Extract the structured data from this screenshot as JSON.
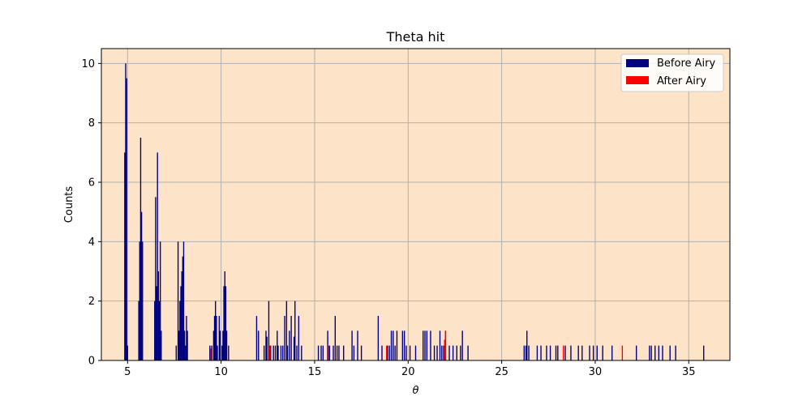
{
  "chart_data": {
    "type": "bar",
    "title": "Theta hit",
    "xlabel": "θ",
    "ylabel": "Counts",
    "xlim": [
      3.6,
      37.2
    ],
    "ylim": [
      0,
      10.5
    ],
    "xticks": [
      5,
      10,
      15,
      20,
      25,
      30,
      35
    ],
    "yticks": [
      0,
      2,
      4,
      6,
      8,
      10
    ],
    "grid": true,
    "background": "#fde4c8",
    "legend_position": "top-right",
    "bin_width": 0.06,
    "series": [
      {
        "name": "Before Airy",
        "color": "#000080",
        "points": [
          [
            4.85,
            7
          ],
          [
            4.9,
            10
          ],
          [
            4.95,
            9.5
          ],
          [
            5.0,
            0.5
          ],
          [
            5.6,
            2
          ],
          [
            5.65,
            4
          ],
          [
            5.7,
            7.5
          ],
          [
            5.75,
            5
          ],
          [
            5.8,
            4
          ],
          [
            6.45,
            2
          ],
          [
            6.5,
            5.5
          ],
          [
            6.55,
            2.5
          ],
          [
            6.6,
            7
          ],
          [
            6.65,
            3
          ],
          [
            6.7,
            2
          ],
          [
            6.75,
            4
          ],
          [
            6.8,
            1
          ],
          [
            7.6,
            0.5
          ],
          [
            7.7,
            4
          ],
          [
            7.75,
            1
          ],
          [
            7.8,
            2
          ],
          [
            7.85,
            2.5
          ],
          [
            7.9,
            3
          ],
          [
            7.95,
            3.5
          ],
          [
            8.0,
            4
          ],
          [
            8.05,
            1
          ],
          [
            8.1,
            0.5
          ],
          [
            8.15,
            1.5
          ],
          [
            8.2,
            1
          ],
          [
            9.4,
            0.5
          ],
          [
            9.5,
            0.5
          ],
          [
            9.6,
            1
          ],
          [
            9.65,
            1.5
          ],
          [
            9.7,
            2
          ],
          [
            9.75,
            1.5
          ],
          [
            9.8,
            0.5
          ],
          [
            9.9,
            1.5
          ],
          [
            9.95,
            1
          ],
          [
            10.05,
            0.5
          ],
          [
            10.1,
            1
          ],
          [
            10.15,
            2.5
          ],
          [
            10.2,
            3
          ],
          [
            10.25,
            2.5
          ],
          [
            10.3,
            1
          ],
          [
            10.4,
            0.5
          ],
          [
            11.9,
            1.5
          ],
          [
            12.0,
            1
          ],
          [
            12.3,
            0.5
          ],
          [
            12.4,
            1
          ],
          [
            12.45,
            0.8
          ],
          [
            12.55,
            2
          ],
          [
            12.65,
            0.5
          ],
          [
            12.8,
            0.5
          ],
          [
            12.9,
            0.5
          ],
          [
            13.0,
            1
          ],
          [
            13.05,
            0.5
          ],
          [
            13.2,
            0.5
          ],
          [
            13.3,
            0.5
          ],
          [
            13.4,
            1.5
          ],
          [
            13.5,
            2
          ],
          [
            13.55,
            0.5
          ],
          [
            13.65,
            1
          ],
          [
            13.75,
            1.5
          ],
          [
            13.9,
            0.8
          ],
          [
            13.95,
            2
          ],
          [
            14.05,
            0.5
          ],
          [
            14.15,
            1.5
          ],
          [
            14.3,
            0.5
          ],
          [
            15.2,
            0.5
          ],
          [
            15.35,
            0.5
          ],
          [
            15.45,
            0.5
          ],
          [
            15.7,
            1
          ],
          [
            15.8,
            0.5
          ],
          [
            16.0,
            0.5
          ],
          [
            16.1,
            1.5
          ],
          [
            16.2,
            0.5
          ],
          [
            16.3,
            0.5
          ],
          [
            16.55,
            0.5
          ],
          [
            17.0,
            1
          ],
          [
            17.1,
            0.5
          ],
          [
            17.3,
            1
          ],
          [
            17.5,
            0.5
          ],
          [
            18.4,
            1.5
          ],
          [
            18.6,
            0.5
          ],
          [
            18.9,
            0.5
          ],
          [
            19.0,
            0.5
          ],
          [
            19.1,
            1
          ],
          [
            19.2,
            1
          ],
          [
            19.3,
            0.5
          ],
          [
            19.4,
            1
          ],
          [
            19.7,
            1
          ],
          [
            19.8,
            1
          ],
          [
            19.9,
            0.5
          ],
          [
            20.1,
            0.5
          ],
          [
            20.4,
            0.5
          ],
          [
            20.8,
            1
          ],
          [
            20.9,
            1
          ],
          [
            21.0,
            1
          ],
          [
            21.2,
            1
          ],
          [
            21.4,
            0.5
          ],
          [
            21.55,
            0.5
          ],
          [
            21.7,
            1
          ],
          [
            21.8,
            0.5
          ],
          [
            21.9,
            0.5
          ],
          [
            22.0,
            1
          ],
          [
            22.2,
            0.5
          ],
          [
            22.4,
            0.5
          ],
          [
            22.6,
            0.5
          ],
          [
            22.8,
            0.5
          ],
          [
            22.9,
            1
          ],
          [
            23.2,
            0.5
          ],
          [
            26.2,
            0.5
          ],
          [
            26.3,
            0.5
          ],
          [
            26.35,
            1
          ],
          [
            26.45,
            0.5
          ],
          [
            26.9,
            0.5
          ],
          [
            27.1,
            0.5
          ],
          [
            27.4,
            0.5
          ],
          [
            27.6,
            0.5
          ],
          [
            27.9,
            0.5
          ],
          [
            28.0,
            0.5
          ],
          [
            28.4,
            0.5
          ],
          [
            28.7,
            0.5
          ],
          [
            29.1,
            0.5
          ],
          [
            29.3,
            0.5
          ],
          [
            29.7,
            0.5
          ],
          [
            29.9,
            0.5
          ],
          [
            30.1,
            0.5
          ],
          [
            30.4,
            0.5
          ],
          [
            30.9,
            0.5
          ],
          [
            32.2,
            0.5
          ],
          [
            32.9,
            0.5
          ],
          [
            33.0,
            0.5
          ],
          [
            33.2,
            0.5
          ],
          [
            33.4,
            0.5
          ],
          [
            33.6,
            0.5
          ],
          [
            34.0,
            0.5
          ],
          [
            34.3,
            0.5
          ],
          [
            35.8,
            0.5
          ]
        ]
      },
      {
        "name": "After Airy",
        "color": "#ff0000",
        "points": [
          [
            9.45,
            0.4
          ],
          [
            12.6,
            0.5
          ],
          [
            15.75,
            0.5
          ],
          [
            18.85,
            0.5
          ],
          [
            21.95,
            0.7
          ],
          [
            22.0,
            1
          ],
          [
            28.3,
            0.5
          ],
          [
            31.45,
            0.5
          ]
        ]
      }
    ]
  }
}
